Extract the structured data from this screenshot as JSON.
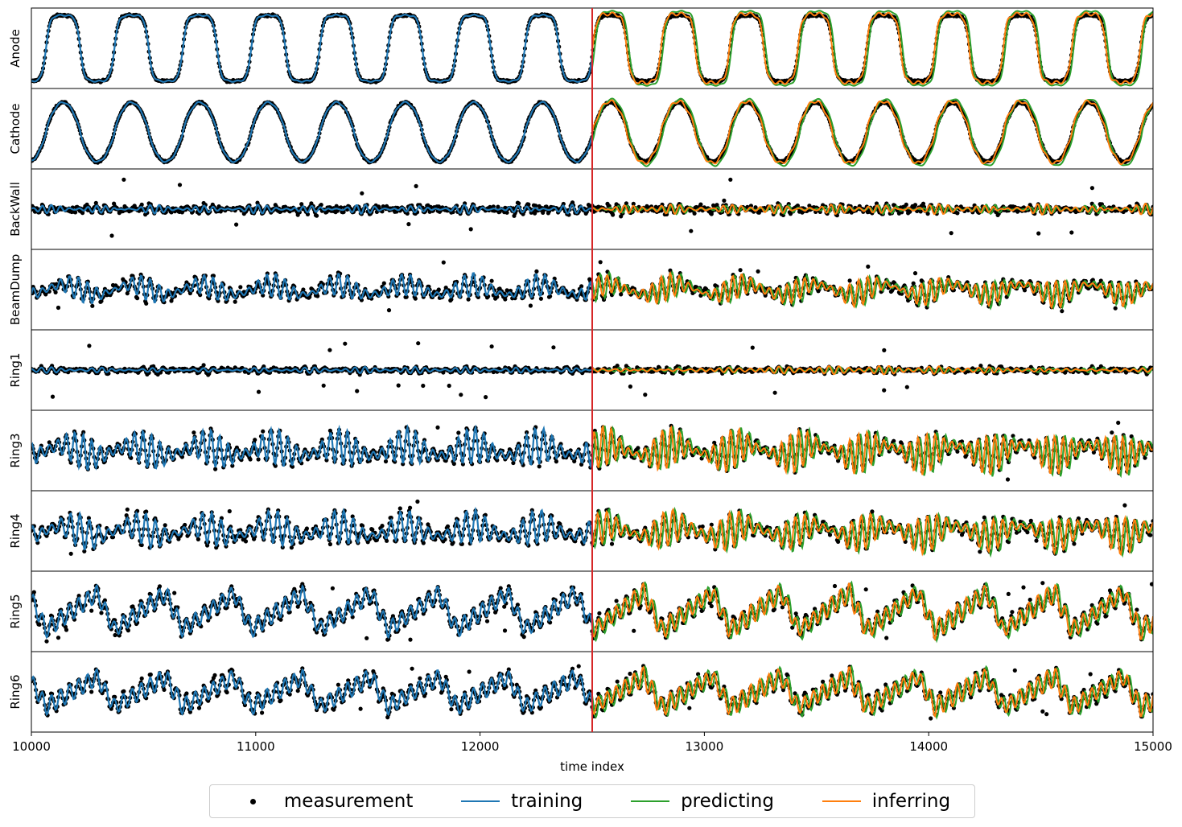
{
  "chart_data": {
    "type": "line",
    "xlabel": "time index",
    "xlim": [
      10000,
      15000
    ],
    "xticks": [
      10000,
      11000,
      12000,
      13000,
      14000,
      15000
    ],
    "split_index": 12500,
    "split_color": "#d62728",
    "panels": [
      {
        "name": "Anode",
        "period": 305,
        "kind": "plateau",
        "amp": 1.0,
        "noise": 0.03,
        "outliers": 0
      },
      {
        "name": "Cathode",
        "period": 305,
        "kind": "peak",
        "amp": 1.0,
        "noise": 0.03,
        "outliers": 0
      },
      {
        "name": "BackWall",
        "period": 40,
        "kind": "flat",
        "amp": 0.12,
        "noise": 0.1,
        "outliers": 14
      },
      {
        "name": "BeamDump",
        "period": 40,
        "kind": "osc",
        "amp": 0.35,
        "noise": 0.12,
        "outliers": 10
      },
      {
        "name": "Ring1",
        "period": 45,
        "kind": "flat",
        "amp": 0.08,
        "noise": 0.06,
        "outliers": 22
      },
      {
        "name": "Ring3",
        "period": 38,
        "kind": "osc",
        "amp": 0.55,
        "noise": 0.1,
        "outliers": 4
      },
      {
        "name": "Ring4",
        "period": 42,
        "kind": "osc",
        "amp": 0.5,
        "noise": 0.12,
        "outliers": 5
      },
      {
        "name": "Ring5",
        "period": 305,
        "kind": "saw",
        "amp": 0.55,
        "noise": 0.12,
        "outliers": 18
      },
      {
        "name": "Ring6",
        "period": 305,
        "kind": "saw",
        "amp": 0.45,
        "noise": 0.12,
        "outliers": 12
      }
    ],
    "series": [
      {
        "name": "measurement",
        "color": "#000000",
        "style": "dots"
      },
      {
        "name": "training",
        "color": "#1f77b4",
        "style": "line",
        "range": [
          10000,
          12500
        ]
      },
      {
        "name": "predicting",
        "color": "#2ca02c",
        "style": "line",
        "range": [
          12500,
          15000
        ]
      },
      {
        "name": "inferring",
        "color": "#ff7f0e",
        "style": "line",
        "range": [
          12500,
          15000
        ]
      }
    ]
  },
  "legend": {
    "measurement": "measurement",
    "training": "training",
    "predicting": "predicting",
    "inferring": "inferring"
  }
}
